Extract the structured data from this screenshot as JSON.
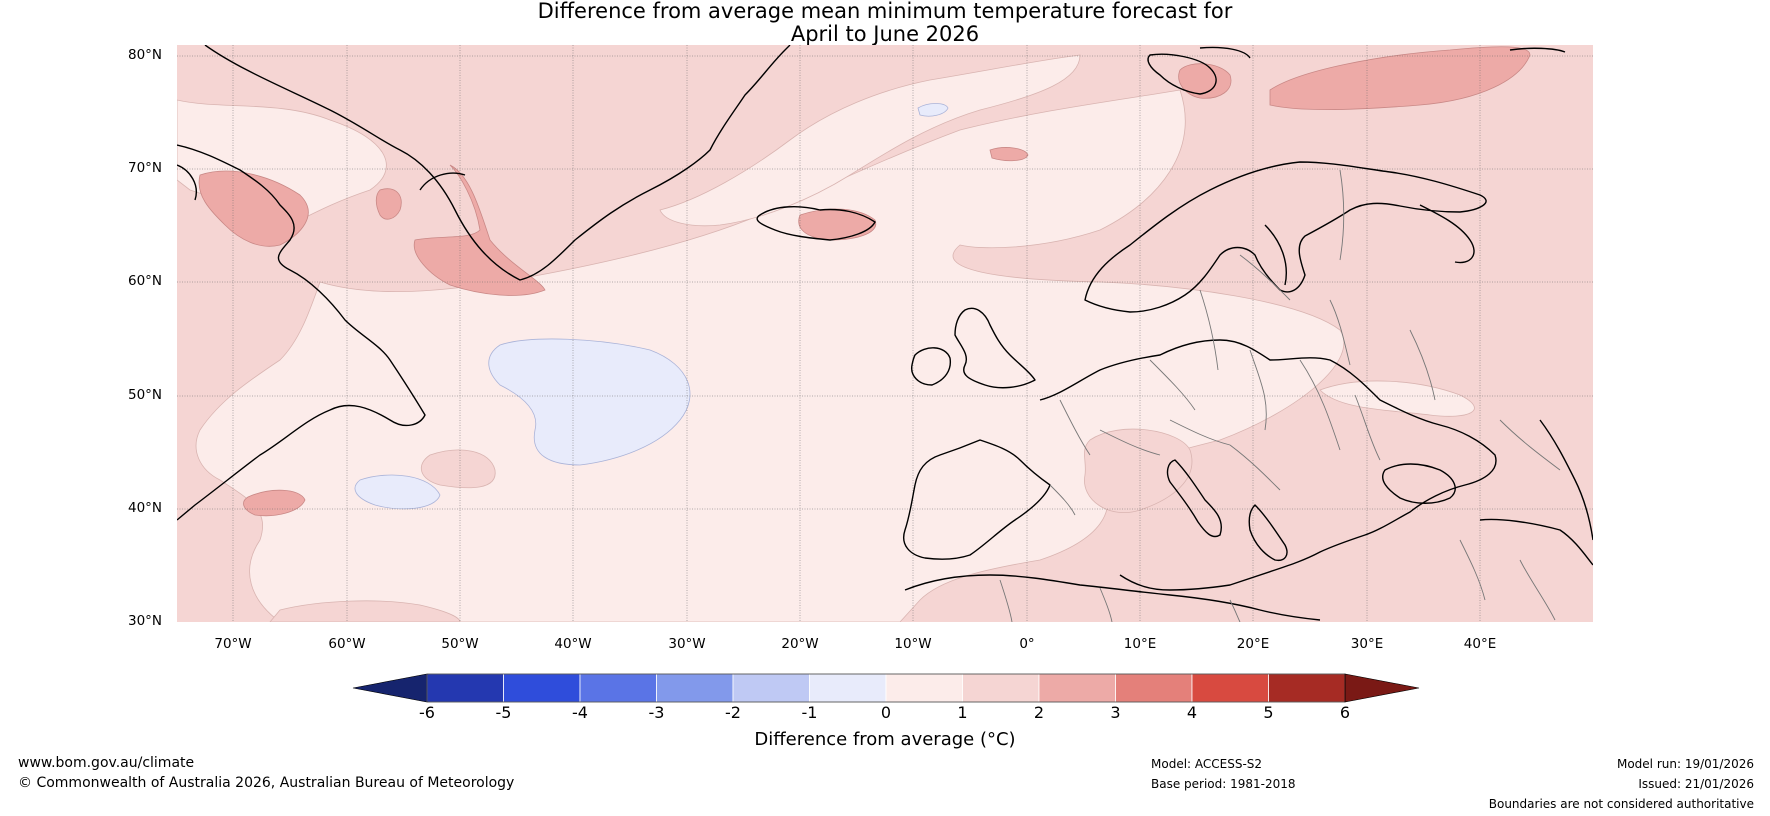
{
  "title": {
    "line1": "Difference from average mean minimum temperature forecast for",
    "line2": "April to June 2026"
  },
  "map": {
    "latitude_labels": [
      "80°N",
      "70°N",
      "60°N",
      "50°N",
      "40°N",
      "30°N"
    ],
    "longitude_labels": [
      "70°W",
      "60°W",
      "50°W",
      "40°W",
      "30°W",
      "20°W",
      "10°W",
      "0°",
      "10°E",
      "20°E",
      "30°E",
      "40°E"
    ],
    "extent": {
      "lon_min": -75,
      "lon_max": 50,
      "lat_min": 30,
      "lat_max": 80
    }
  },
  "colorbar": {
    "label": "Difference from average (°C)",
    "tick_labels": [
      "-6",
      "-5",
      "-4",
      "-3",
      "-2",
      "-1",
      "0",
      "1",
      "2",
      "3",
      "4",
      "5",
      "6"
    ],
    "colors": [
      "#16246e",
      "#2438b0",
      "#2f4ddb",
      "#5a74e6",
      "#8299eb",
      "#bfc9f4",
      "#e8ebfb",
      "#fcecea",
      "#f5d5d3",
      "#edaaa7",
      "#e4807a",
      "#d84a40",
      "#a62b24",
      "#7a1915"
    ]
  },
  "footer": {
    "website": "www.bom.gov.au/climate",
    "copyright": "© Commonwealth of Australia 2026, Australian Bureau of Meteorology",
    "model": "Model: ACCESS-S2",
    "base_period": "Base period: 1981-2018",
    "model_run": "Model run: 19/01/2026",
    "issued": "Issued: 21/01/2026",
    "disclaimer": "Boundaries are not considered authoritative"
  }
}
